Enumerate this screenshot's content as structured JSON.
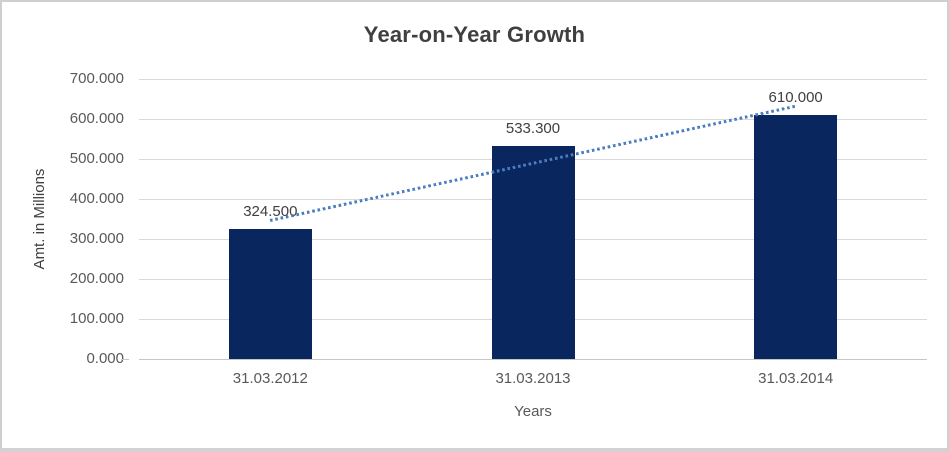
{
  "chart_data": {
    "type": "bar",
    "title": "Year-on-Year Growth",
    "xlabel": "Years",
    "ylabel": "Amt. in Millions",
    "categories": [
      "31.03.2012",
      "31.03.2013",
      "31.03.2014"
    ],
    "values": [
      324.5,
      533.3,
      610.0
    ],
    "data_labels": [
      "324.500",
      "533.300",
      "610.000"
    ],
    "ylim": [
      0,
      700
    ],
    "ytick_step": 100,
    "ytick_labels": [
      "0.000",
      "100.000",
      "200.000",
      "300.000",
      "400.000",
      "500.000",
      "600.000",
      "700.000"
    ],
    "grid": true,
    "legend": "none",
    "trendline": {
      "kind": "linear",
      "style": "dotted",
      "value_at_first_category": 346.5,
      "value_at_last_category": 632.0
    },
    "colors": {
      "bar": "#0a265f",
      "trendline": "#4a7ec0",
      "gridline": "#d9d9d9",
      "axis_line": "#c6c6c6",
      "tick_text": "#595959",
      "title_text": "#3f3f3f",
      "data_label_text": "#404040",
      "frame_border": "#cfcfcf",
      "background": "#ffffff"
    }
  }
}
